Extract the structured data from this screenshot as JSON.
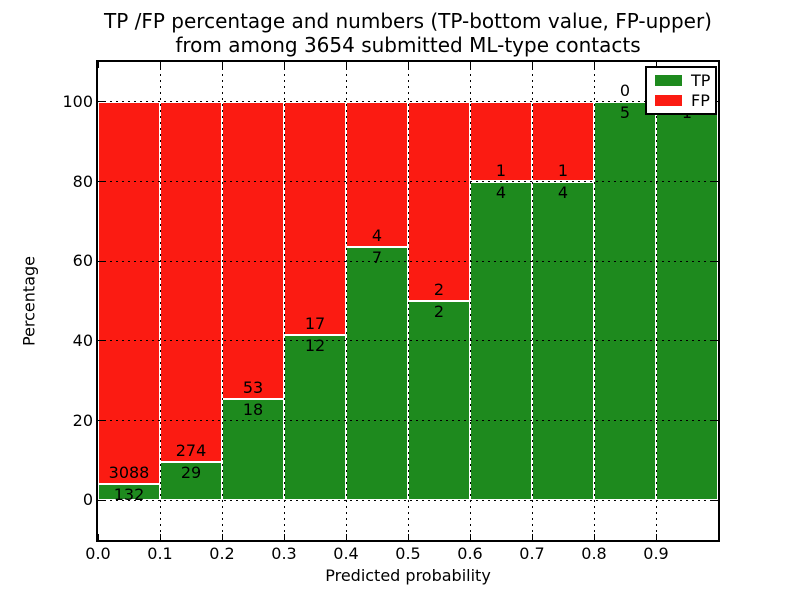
{
  "chart_data": {
    "type": "bar",
    "variant": "stacked-percentage-histogram",
    "title_line1": "TP /FP percentage and numbers (TP-bottom value, FP-upper)",
    "title_line2": "from among 3654 submitted ML-type contacts",
    "xlabel": "Predicted probability",
    "ylabel": "Percentage",
    "total_submitted": 3654,
    "xlim": [
      0.0,
      1.0
    ],
    "ylim": [
      -10,
      110
    ],
    "x_tick_labels": [
      "0.0",
      "0.1",
      "0.2",
      "0.3",
      "0.4",
      "0.5",
      "0.6",
      "0.7",
      "0.8",
      "0.9"
    ],
    "y_ticks": [
      0,
      20,
      40,
      60,
      80,
      100
    ],
    "grid_style": "dotted",
    "colors": {
      "tp_green": "#1E8A1E",
      "fp_red": "#FB1B12",
      "background": "#FFFFFF",
      "text": "#000000"
    },
    "legend": {
      "position": "upper-right",
      "entries": [
        {
          "label": "TP",
          "color": "#1E8A1E"
        },
        {
          "label": "FP",
          "color": "#FB1B12"
        }
      ]
    },
    "bins": [
      {
        "x_start": 0.0,
        "x_end": 0.1,
        "tp": 132,
        "fp": 3088,
        "tp_pct": 4.1
      },
      {
        "x_start": 0.1,
        "x_end": 0.2,
        "tp": 29,
        "fp": 274,
        "tp_pct": 9.57
      },
      {
        "x_start": 0.2,
        "x_end": 0.3,
        "tp": 18,
        "fp": 53,
        "tp_pct": 25.35
      },
      {
        "x_start": 0.3,
        "x_end": 0.4,
        "tp": 12,
        "fp": 17,
        "tp_pct": 41.38
      },
      {
        "x_start": 0.4,
        "x_end": 0.5,
        "tp": 7,
        "fp": 4,
        "tp_pct": 63.64
      },
      {
        "x_start": 0.5,
        "x_end": 0.6,
        "tp": 2,
        "fp": 2,
        "tp_pct": 50.0
      },
      {
        "x_start": 0.6,
        "x_end": 0.7,
        "tp": 4,
        "fp": 1,
        "tp_pct": 80.0
      },
      {
        "x_start": 0.7,
        "x_end": 0.8,
        "tp": 4,
        "fp": 1,
        "tp_pct": 80.0
      },
      {
        "x_start": 0.8,
        "x_end": 0.9,
        "tp": 5,
        "fp": 0,
        "tp_pct": 100.0
      },
      {
        "x_start": 0.9,
        "x_end": 1.0,
        "tp": 1,
        "fp": 0,
        "tp_pct": 100.0
      }
    ]
  }
}
